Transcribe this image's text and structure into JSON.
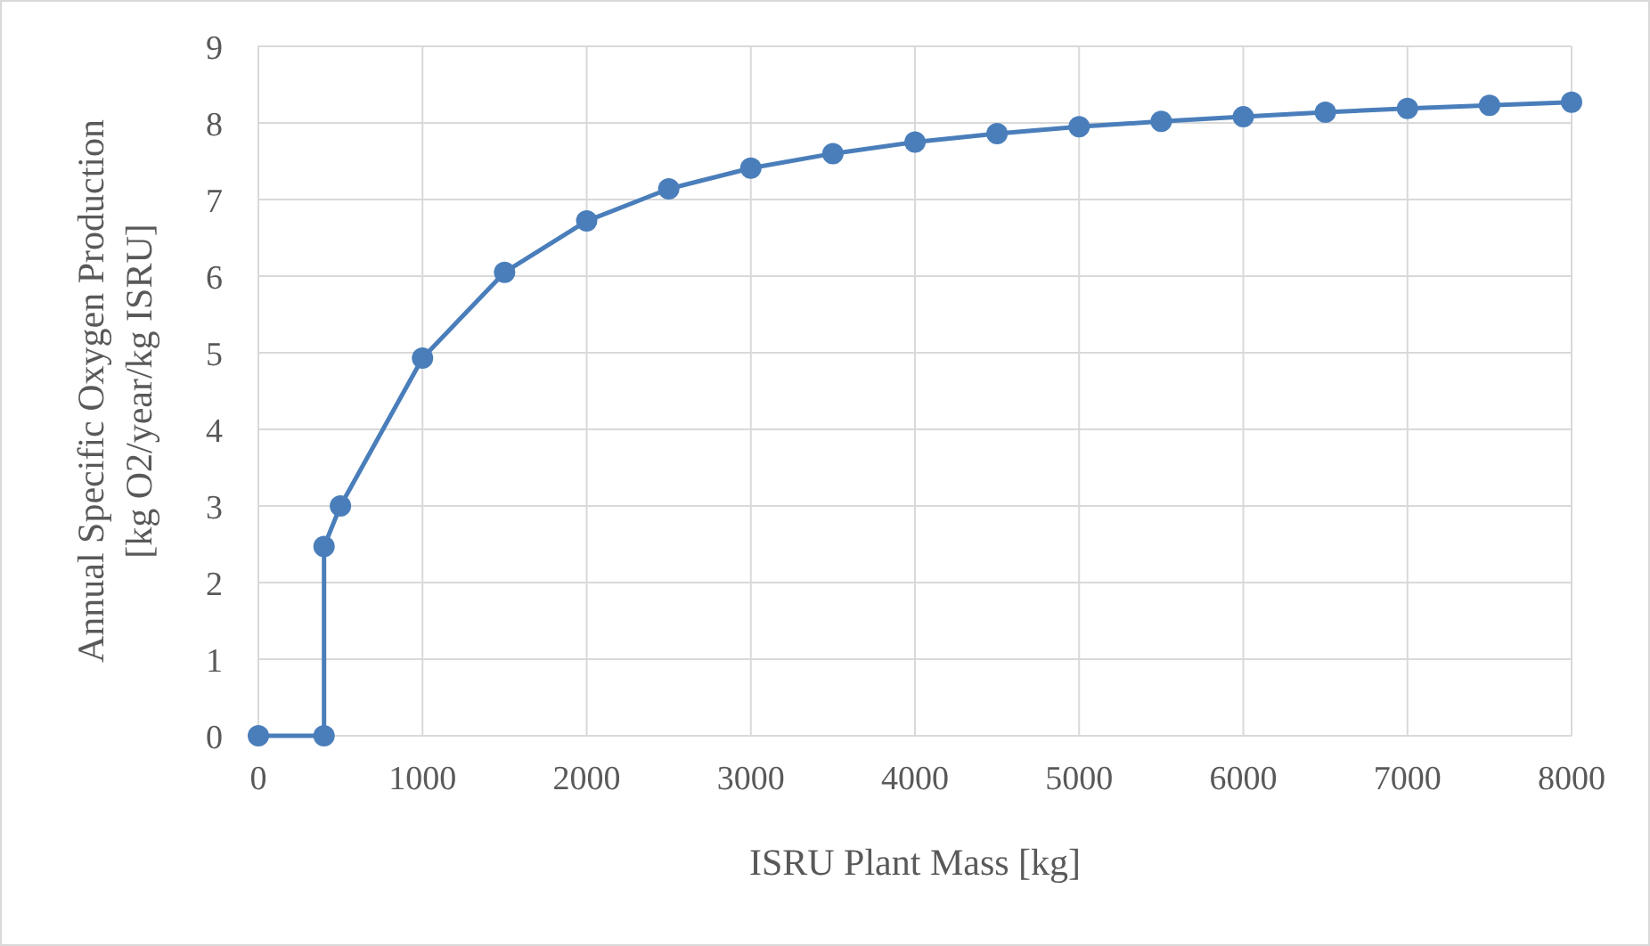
{
  "chart_data": {
    "type": "line",
    "xlabel": "ISRU Plant Mass [kg]",
    "ylabel": "Annual Specific Oxygen Production\n[kg O2/year/kg ISRU]",
    "x": [
      0,
      400,
      400,
      500,
      1000,
      1500,
      2000,
      2500,
      3000,
      3500,
      4000,
      4500,
      5000,
      5500,
      6000,
      6500,
      7000,
      7500,
      8000
    ],
    "series": [
      {
        "color": "#4a7ebb",
        "values": [
          0,
          0,
          2.47,
          3.0,
          4.93,
          6.05,
          6.72,
          7.14,
          7.41,
          7.6,
          7.75,
          7.86,
          7.95,
          8.02,
          8.08,
          8.14,
          8.19,
          8.23,
          8.27
        ]
      }
    ],
    "xlim": [
      0,
      8000
    ],
    "xticks": [
      0,
      1000,
      2000,
      3000,
      4000,
      5000,
      6000,
      7000,
      8000
    ],
    "ylim": [
      0,
      9
    ],
    "yticks": [
      0,
      1,
      2,
      3,
      4,
      5,
      6,
      7,
      8,
      9
    ],
    "grid": true,
    "marker": "circle",
    "line_style": "solid"
  }
}
